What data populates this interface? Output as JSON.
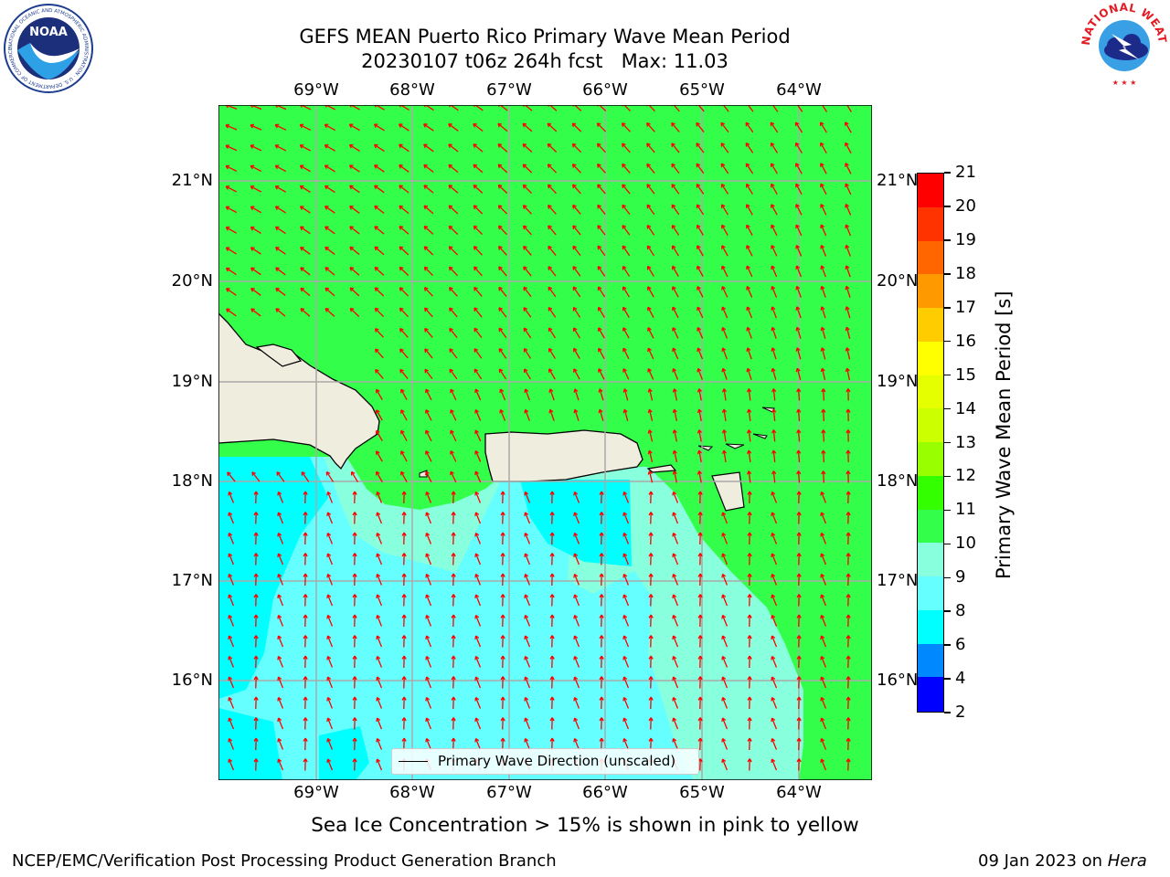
{
  "header": {
    "title_line1": "GEFS MEAN Puerto Rico Primary Wave Mean Period",
    "title_line2": "20230107 t06z 264h fcst   Max: 11.03"
  },
  "logos": {
    "noaa_text": "NOAA",
    "noaa_ring": "NATIONAL OCEANIC AND ATMOSPHERIC ADMINISTRATION · U.S. DEPARTMENT OF COMMERCE ·",
    "nws_ring": "NATIONAL WEATHER SERVICE"
  },
  "map": {
    "lon_labels": [
      "69°W",
      "68°W",
      "67°W",
      "66°W",
      "65°W",
      "64°W"
    ],
    "lat_labels": [
      "21°N",
      "20°N",
      "19°N",
      "18°N",
      "17°N",
      "16°N"
    ],
    "arrow_color": "#ff0000",
    "legend_label": "Primary Wave Direction (unscaled)",
    "colors": {
      "land": "#efedde",
      "green": "#33ff4a",
      "cyan": "#00ffff",
      "lightcyan": "#66ffff",
      "aqua": "#88ffdd"
    }
  },
  "colorbar": {
    "label": "Primary Wave Mean Period [s]",
    "ticks": [
      "21",
      "20",
      "19",
      "18",
      "17",
      "16",
      "15",
      "14",
      "13",
      "12",
      "11",
      "10",
      "9",
      "8",
      "6",
      "4",
      "2"
    ],
    "colors": [
      "#ff0000",
      "#ff3300",
      "#ff6600",
      "#ff9900",
      "#ffcc00",
      "#ffff00",
      "#e6ff00",
      "#ccff00",
      "#99ff00",
      "#33ff00",
      "#33ff4a",
      "#88ffdd",
      "#66ffff",
      "#00ffff",
      "#0088ff",
      "#0000ff"
    ]
  },
  "note": "Sea Ice Concentration > 15% is shown in pink to yellow",
  "footer": {
    "left": "NCEP/EMC/Verification Post Processing Product Generation Branch",
    "date": "09 Jan 2023 on ",
    "host": "Hera"
  }
}
